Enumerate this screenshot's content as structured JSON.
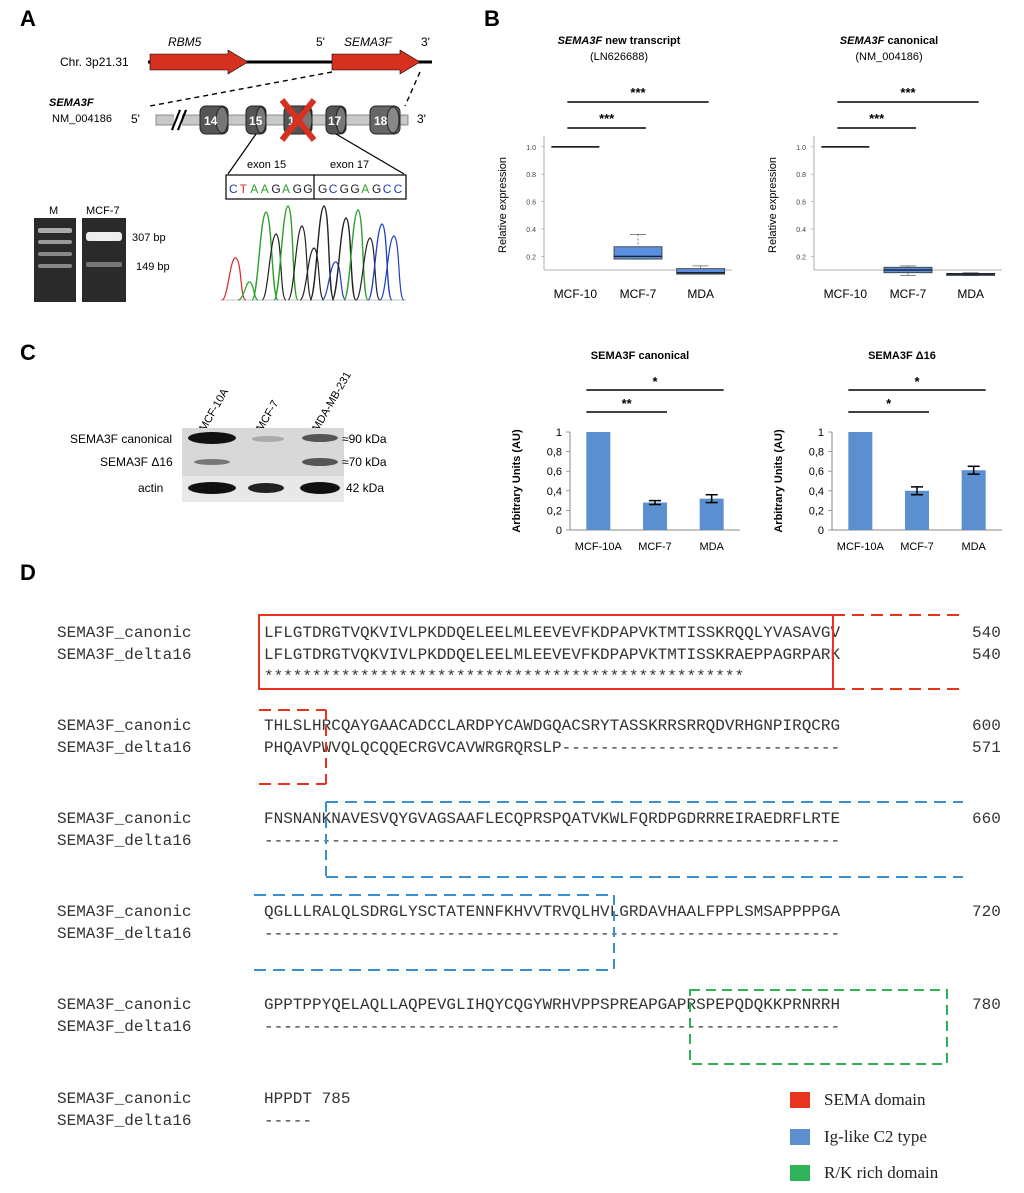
{
  "panels": {
    "a": "A",
    "b": "B",
    "c": "C",
    "d": "D"
  },
  "panel_a": {
    "chr_label": "Chr. 3p21.31",
    "gene1": "RBM5",
    "gene2": "SEMA3F",
    "five_prime": "5'",
    "three_prime": "3'",
    "gene_label": "SEMA3F",
    "gene_accession": "NM_004186",
    "exons": [
      "14",
      "15",
      "16",
      "17",
      "18"
    ],
    "junction_left": "exon 15",
    "junction_right": "exon 17",
    "sequence_left": [
      "C",
      "T",
      "A",
      "A",
      "G",
      "A",
      "G",
      "G"
    ],
    "sequence_right": [
      "G",
      "C",
      "G",
      "G",
      "A",
      "G",
      "C",
      "C"
    ],
    "base_colors": {
      "A": "#2ca02c",
      "C": "#1f3fbf",
      "G": "#222222",
      "T": "#d62728"
    },
    "gel_lane_m": "M",
    "gel_lane_sample": "MCF-7",
    "band_1": "307 bp",
    "band_2": "149 bp"
  },
  "panel_c_blot": {
    "lanes": [
      "MCF-10A",
      "MCF-7",
      "MDA-MB-231"
    ],
    "row_labels": [
      "SEMA3F canonical",
      "SEMA3F Δ16",
      "actin"
    ],
    "sizes": [
      "≈90 kDa",
      "≈70 kDa",
      "42 kDa"
    ]
  },
  "chart_data": [
    {
      "type": "box",
      "title_italic": "SEMA3F",
      "title_rest": " new transcript",
      "subtitle": "(LN626688)",
      "ylabel": "Relative expression",
      "categories": [
        "MCF-10",
        "MCF-7",
        "MDA"
      ],
      "yticks": [
        "0.2",
        "0.4",
        "0.6",
        "0.8",
        "1.0"
      ],
      "ylim": [
        0.1,
        1.05
      ],
      "boxes": [
        {
          "min": 1.0,
          "q1": 1.0,
          "median": 1.0,
          "q3": 1.0,
          "max": 1.0
        },
        {
          "min": 0.18,
          "q1": 0.18,
          "median": 0.2,
          "q3": 0.27,
          "max": 0.36
        },
        {
          "min": 0.07,
          "q1": 0.07,
          "median": 0.08,
          "q3": 0.11,
          "max": 0.13
        }
      ],
      "significance": [
        {
          "from": 0,
          "to": 1,
          "label": "***"
        },
        {
          "from": 0,
          "to": 2,
          "label": "***"
        }
      ]
    },
    {
      "type": "box",
      "title_italic": "SEMA3F",
      "title_rest": " canonical",
      "subtitle": "(NM_004186)",
      "ylabel": "Relative expression",
      "categories": [
        "MCF-10",
        "MCF-7",
        "MDA"
      ],
      "yticks": [
        "0.2",
        "0.4",
        "0.6",
        "0.8",
        "1.0"
      ],
      "ylim": [
        0.1,
        1.05
      ],
      "boxes": [
        {
          "min": 1.0,
          "q1": 1.0,
          "median": 1.0,
          "q3": 1.0,
          "max": 1.0
        },
        {
          "min": 0.06,
          "q1": 0.08,
          "median": 0.1,
          "q3": 0.12,
          "max": 0.13
        },
        {
          "min": 0.06,
          "q1": 0.065,
          "median": 0.07,
          "q3": 0.075,
          "max": 0.08
        }
      ],
      "significance": [
        {
          "from": 0,
          "to": 1,
          "label": "***"
        },
        {
          "from": 0,
          "to": 2,
          "label": "***"
        }
      ]
    },
    {
      "type": "bar",
      "title": "SEMA3F canonical",
      "ylabel": "Arbitrary Units (AU)",
      "categories": [
        "MCF-10A",
        "MCF-7",
        "MDA"
      ],
      "values": [
        1.0,
        0.28,
        0.32
      ],
      "errors": [
        0.0,
        0.02,
        0.04
      ],
      "yticks": [
        "0",
        "0,2",
        "0,4",
        "0,6",
        "0,8",
        "1"
      ],
      "ylim": [
        0,
        1
      ],
      "significance": [
        {
          "from": 0,
          "to": 1,
          "label": "**"
        },
        {
          "from": 0,
          "to": 2,
          "label": "*"
        }
      ]
    },
    {
      "type": "bar",
      "title": "SEMA3F Δ16",
      "ylabel": "Arbitrary Units (AU)",
      "categories": [
        "MCF-10A",
        "MCF-7",
        "MDA"
      ],
      "values": [
        1.0,
        0.4,
        0.61
      ],
      "errors": [
        0.0,
        0.04,
        0.04
      ],
      "yticks": [
        "0",
        "0,2",
        "0,4",
        "0,6",
        "0,8",
        "1"
      ],
      "ylim": [
        0,
        1
      ],
      "significance": [
        {
          "from": 0,
          "to": 1,
          "label": "*"
        },
        {
          "from": 0,
          "to": 2,
          "label": "*"
        }
      ]
    }
  ],
  "alignment": {
    "blocks": [
      {
        "name1": "SEMA3F_canonic",
        "seq1": "LFLGTDRGTVQKVIVLPKDDQELEELMLEEVEVFKDPAPVKTMTISSKRQQLYVASAVGV",
        "num1": "540",
        "name2": "SEMA3F_delta16",
        "seq2": "LFLGTDRGTVQKVIVLPKDDQELEELMLEEVEVFKDPAPVKTMTISSKRAEPPAGRPARK",
        "num2": "540",
        "cons": "**************************************************"
      },
      {
        "name1": "SEMA3F_canonic",
        "seq1": "THLSLHRCQAYGAACADCCLARDPYCAWDGQACSRYTASSKRRSRRQDVRHGNPIRQCRG",
        "num1": "600",
        "name2": "SEMA3F_delta16",
        "seq2": "PHQAVPWVQLQCQQECRGVCAVWRGRQRSLP-----------------------------",
        "num2": "571",
        "cons": ""
      },
      {
        "name1": "SEMA3F_canonic",
        "seq1": "FNSNANKNAVESVQYGVAGSAAFLECQPRSPQATVKWLFQRDPGDRRREIRAEDRFLRTE",
        "num1": "660",
        "name2": "SEMA3F_delta16",
        "seq2": "------------------------------------------------------------",
        "num2": "",
        "cons": ""
      },
      {
        "name1": "SEMA3F_canonic",
        "seq1": "QGLLLRALQLSDRGLYSCTATENNFKHVVTRVQLHVLGRDAVHAALFPPLSMSAPPPPGA",
        "num1": "720",
        "name2": "SEMA3F_delta16",
        "seq2": "------------------------------------------------------------",
        "num2": "",
        "cons": ""
      },
      {
        "name1": "SEMA3F_canonic",
        "seq1": "GPPTPPYQELAQLLAQPEVGLIHQYCQGYWRHVPPSPREAPGAPRSPEPQDQKKPRNRRH",
        "num1": "780",
        "name2": "SEMA3F_delta16",
        "seq2": "------------------------------------------------------------",
        "num2": "",
        "cons": ""
      },
      {
        "name1": "SEMA3F_canonic",
        "seq1": "HPPDT 785",
        "num1": "",
        "name2": "SEMA3F_delta16",
        "seq2": "-----",
        "num2": "",
        "cons": ""
      }
    ],
    "legend": [
      {
        "label": "SEMA domain",
        "color": "#e8341c"
      },
      {
        "label": "Ig-like C2 type",
        "color": "#5b8fd0"
      },
      {
        "label": "R/K rich domain",
        "color": "#2fb35a"
      }
    ]
  }
}
